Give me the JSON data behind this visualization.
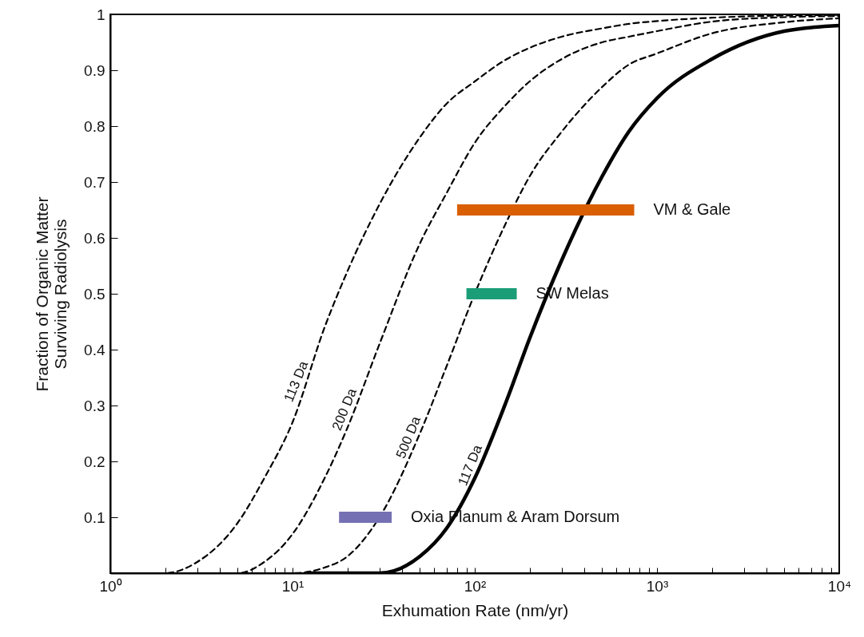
{
  "chart_data": {
    "type": "line",
    "xlabel": "Exhumation Rate (nm/yr)",
    "ylabel": "Fraction of Organic Matter\nSurviving Radiolysis",
    "log": "x",
    "xlim": [
      1,
      10000
    ],
    "ylim": [
      0,
      1
    ],
    "xticks": [
      {
        "value": 1,
        "label": "10⁰"
      },
      {
        "value": 2,
        "label": null
      },
      {
        "value": 3,
        "label": null
      },
      {
        "value": 4,
        "label": null
      },
      {
        "value": 5,
        "label": null
      },
      {
        "value": 6,
        "label": null
      },
      {
        "value": 7,
        "label": null
      },
      {
        "value": 8,
        "label": null
      },
      {
        "value": 9,
        "label": null
      },
      {
        "value": 10,
        "label": "10¹"
      },
      {
        "value": 20,
        "label": null
      },
      {
        "value": 30,
        "label": null
      },
      {
        "value": 40,
        "label": null
      },
      {
        "value": 50,
        "label": null
      },
      {
        "value": 60,
        "label": null
      },
      {
        "value": 70,
        "label": null
      },
      {
        "value": 80,
        "label": null
      },
      {
        "value": 90,
        "label": null
      },
      {
        "value": 100,
        "label": "10²"
      },
      {
        "value": 200,
        "label": null
      },
      {
        "value": 300,
        "label": null
      },
      {
        "value": 400,
        "label": null
      },
      {
        "value": 500,
        "label": null
      },
      {
        "value": 600,
        "label": null
      },
      {
        "value": 700,
        "label": null
      },
      {
        "value": 800,
        "label": null
      },
      {
        "value": 900,
        "label": null
      },
      {
        "value": 1000,
        "label": "10³"
      },
      {
        "value": 2000,
        "label": null
      },
      {
        "value": 3000,
        "label": null
      },
      {
        "value": 4000,
        "label": null
      },
      {
        "value": 5000,
        "label": null
      },
      {
        "value": 6000,
        "label": null
      },
      {
        "value": 7000,
        "label": null
      },
      {
        "value": 8000,
        "label": null
      },
      {
        "value": 9000,
        "label": null
      },
      {
        "value": 10000,
        "label": "10⁴"
      }
    ],
    "yticks": [
      {
        "value": 0,
        "label": null
      },
      0.1,
      0.2,
      0.3,
      0.4,
      0.5,
      0.6,
      0.7,
      0.8,
      0.9,
      1
    ],
    "series": [
      {
        "name": "113 Da",
        "color": "#000000",
        "line_style": "dashed",
        "x": [
          1,
          1.5,
          2,
          3,
          5,
          7,
          10,
          15,
          20,
          30,
          50,
          70,
          100,
          150,
          200,
          300,
          500,
          700,
          1000,
          2000,
          5000,
          10000
        ],
        "values": [
          0,
          0,
          0,
          0.02,
          0.09,
          0.17,
          0.27,
          0.44,
          0.54,
          0.66,
          0.78,
          0.84,
          0.88,
          0.92,
          0.94,
          0.96,
          0.975,
          0.983,
          0.988,
          0.994,
          0.998,
          0.999
        ]
      },
      {
        "name": "200 Da",
        "color": "#000000",
        "line_style": "dashed",
        "x": [
          2,
          3,
          5,
          7,
          10,
          15,
          20,
          30,
          50,
          70,
          100,
          150,
          200,
          300,
          500,
          700,
          1000,
          2000,
          5000,
          10000
        ],
        "values": [
          0,
          0,
          0,
          0.02,
          0.07,
          0.17,
          0.26,
          0.41,
          0.59,
          0.68,
          0.77,
          0.84,
          0.88,
          0.92,
          0.95,
          0.96,
          0.97,
          0.987,
          0.995,
          0.997
        ]
      },
      {
        "name": "500 Da",
        "color": "#000000",
        "line_style": "dashed",
        "x": [
          5,
          7,
          10,
          15,
          20,
          30,
          50,
          70,
          100,
          150,
          200,
          300,
          500,
          700,
          1000,
          2000,
          5000,
          10000
        ],
        "values": [
          0,
          0,
          0,
          0.01,
          0.03,
          0.1,
          0.25,
          0.37,
          0.5,
          0.63,
          0.71,
          0.79,
          0.87,
          0.91,
          0.93,
          0.966,
          0.986,
          0.993
        ]
      },
      {
        "name": "117 Da",
        "color": "#000000",
        "line_style": "solid",
        "x": [
          12,
          15,
          20,
          30,
          50,
          70,
          100,
          150,
          200,
          300,
          500,
          700,
          1000,
          2000,
          5000,
          10000
        ],
        "values": [
          0,
          0,
          0,
          0,
          0.03,
          0.08,
          0.17,
          0.31,
          0.42,
          0.56,
          0.71,
          0.79,
          0.85,
          0.92,
          0.97,
          0.98
        ]
      },
      {
        "name": "VM & Gale",
        "color": "#d95f02",
        "line_style": "solid",
        "x": [
          80,
          750
        ],
        "values": [
          0.65,
          0.65
        ]
      },
      {
        "name": "SW Melas",
        "color": "#1b9e77",
        "line_style": "solid",
        "x": [
          90,
          170
        ],
        "values": [
          0.5,
          0.5
        ]
      },
      {
        "name": "Oxia Planum & Aram Dorsum",
        "color": "#7570b3",
        "line_style": "solid",
        "x": [
          18,
          35
        ],
        "values": [
          0.1,
          0.1
        ]
      }
    ]
  }
}
